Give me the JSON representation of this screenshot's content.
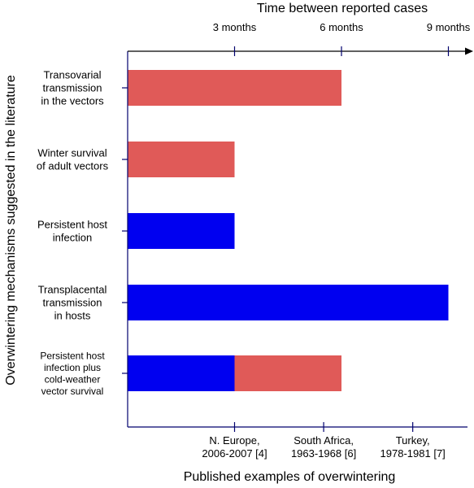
{
  "chart_data": {
    "type": "bar",
    "orientation": "horizontal",
    "stacked": true,
    "title": "Time between reported cases",
    "ylabel": "Overwintering mechanisms suggested in the literature",
    "xlabel": "Published examples of overwintering",
    "x_unit": "months",
    "xlim": [
      0,
      9.3
    ],
    "top_ticks": [
      {
        "value": 3,
        "label": "3 months"
      },
      {
        "value": 6,
        "label": "6 months"
      },
      {
        "value": 9,
        "label": "9 months"
      }
    ],
    "bottom_ticks": [
      {
        "value": 3,
        "lines": [
          "N. Europe,",
          "2006-2007 [4]"
        ]
      },
      {
        "value": 5.5,
        "lines": [
          "South Africa,",
          "1963-1968 [6]"
        ]
      },
      {
        "value": 8,
        "lines": [
          "Turkey,",
          "1978-1981 [7]"
        ]
      }
    ],
    "colors": {
      "red": "#e05a58",
      "blue": "#0000f0",
      "axis": "#00006e"
    },
    "categories": [
      {
        "lines": [
          "Transovarial",
          "transmission",
          "in the vectors"
        ],
        "segments": [
          {
            "start": 0,
            "end": 6,
            "color": "red"
          }
        ]
      },
      {
        "lines": [
          "Winter survival",
          "of adult vectors"
        ],
        "segments": [
          {
            "start": 0,
            "end": 3,
            "color": "red"
          }
        ]
      },
      {
        "lines": [
          "Persistent host",
          "infection"
        ],
        "segments": [
          {
            "start": 0,
            "end": 3,
            "color": "blue"
          }
        ]
      },
      {
        "lines": [
          "Transplacental",
          "transmission",
          "in hosts"
        ],
        "segments": [
          {
            "start": 0,
            "end": 9,
            "color": "blue"
          }
        ]
      },
      {
        "lines": [
          "Persistent host",
          "infection plus",
          "cold-weather",
          "vector survival"
        ],
        "small": true,
        "segments": [
          {
            "start": 0,
            "end": 3,
            "color": "blue"
          },
          {
            "start": 3,
            "end": 6,
            "color": "red"
          }
        ]
      }
    ]
  }
}
